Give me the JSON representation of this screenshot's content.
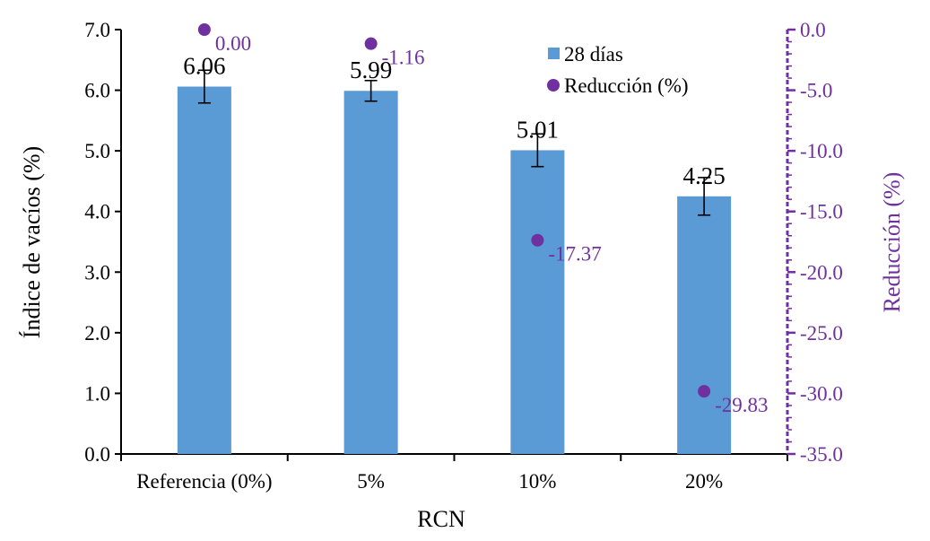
{
  "chart_data": {
    "type": "bar",
    "categories": [
      "Referencia (0%)",
      "5%",
      "10%",
      "20%"
    ],
    "series": [
      {
        "name": "28 días",
        "axis": "left",
        "values": [
          6.06,
          5.99,
          5.01,
          4.25
        ],
        "value_labels": [
          "6.06",
          "5.99",
          "5.01",
          "4.25"
        ],
        "error": [
          0.27,
          0.17,
          0.27,
          0.31
        ],
        "color": "#5b9bd5"
      },
      {
        "name": "Reducción (%)",
        "axis": "right",
        "kind": "scatter",
        "values": [
          0.0,
          -1.16,
          -17.37,
          -29.83
        ],
        "value_labels": [
          "0.00",
          "-1.16",
          "-17.37",
          "-29.83"
        ],
        "color": "#7030a0"
      }
    ],
    "xlabel": "RCN",
    "ylabel": "Índice de vacíos (%)",
    "y2label": "Reducción (%)",
    "ylim": [
      0,
      7
    ],
    "y2lim": [
      -35,
      0
    ],
    "yticks": [
      "0.0",
      "1.0",
      "2.0",
      "3.0",
      "4.0",
      "5.0",
      "6.0",
      "7.0"
    ],
    "y2ticks": [
      "0.0",
      "-5.0",
      "-10.0",
      "-15.0",
      "-20.0",
      "-25.0",
      "-30.0",
      "-35.0"
    ],
    "legend": {
      "position": "top-right",
      "entries": [
        "28 días",
        "Reducción (%)"
      ]
    },
    "grid": false,
    "colors": {
      "axis": "#000000",
      "axis2": "#7030a0",
      "bar": "#5b9bd5",
      "point": "#7030a0"
    }
  }
}
